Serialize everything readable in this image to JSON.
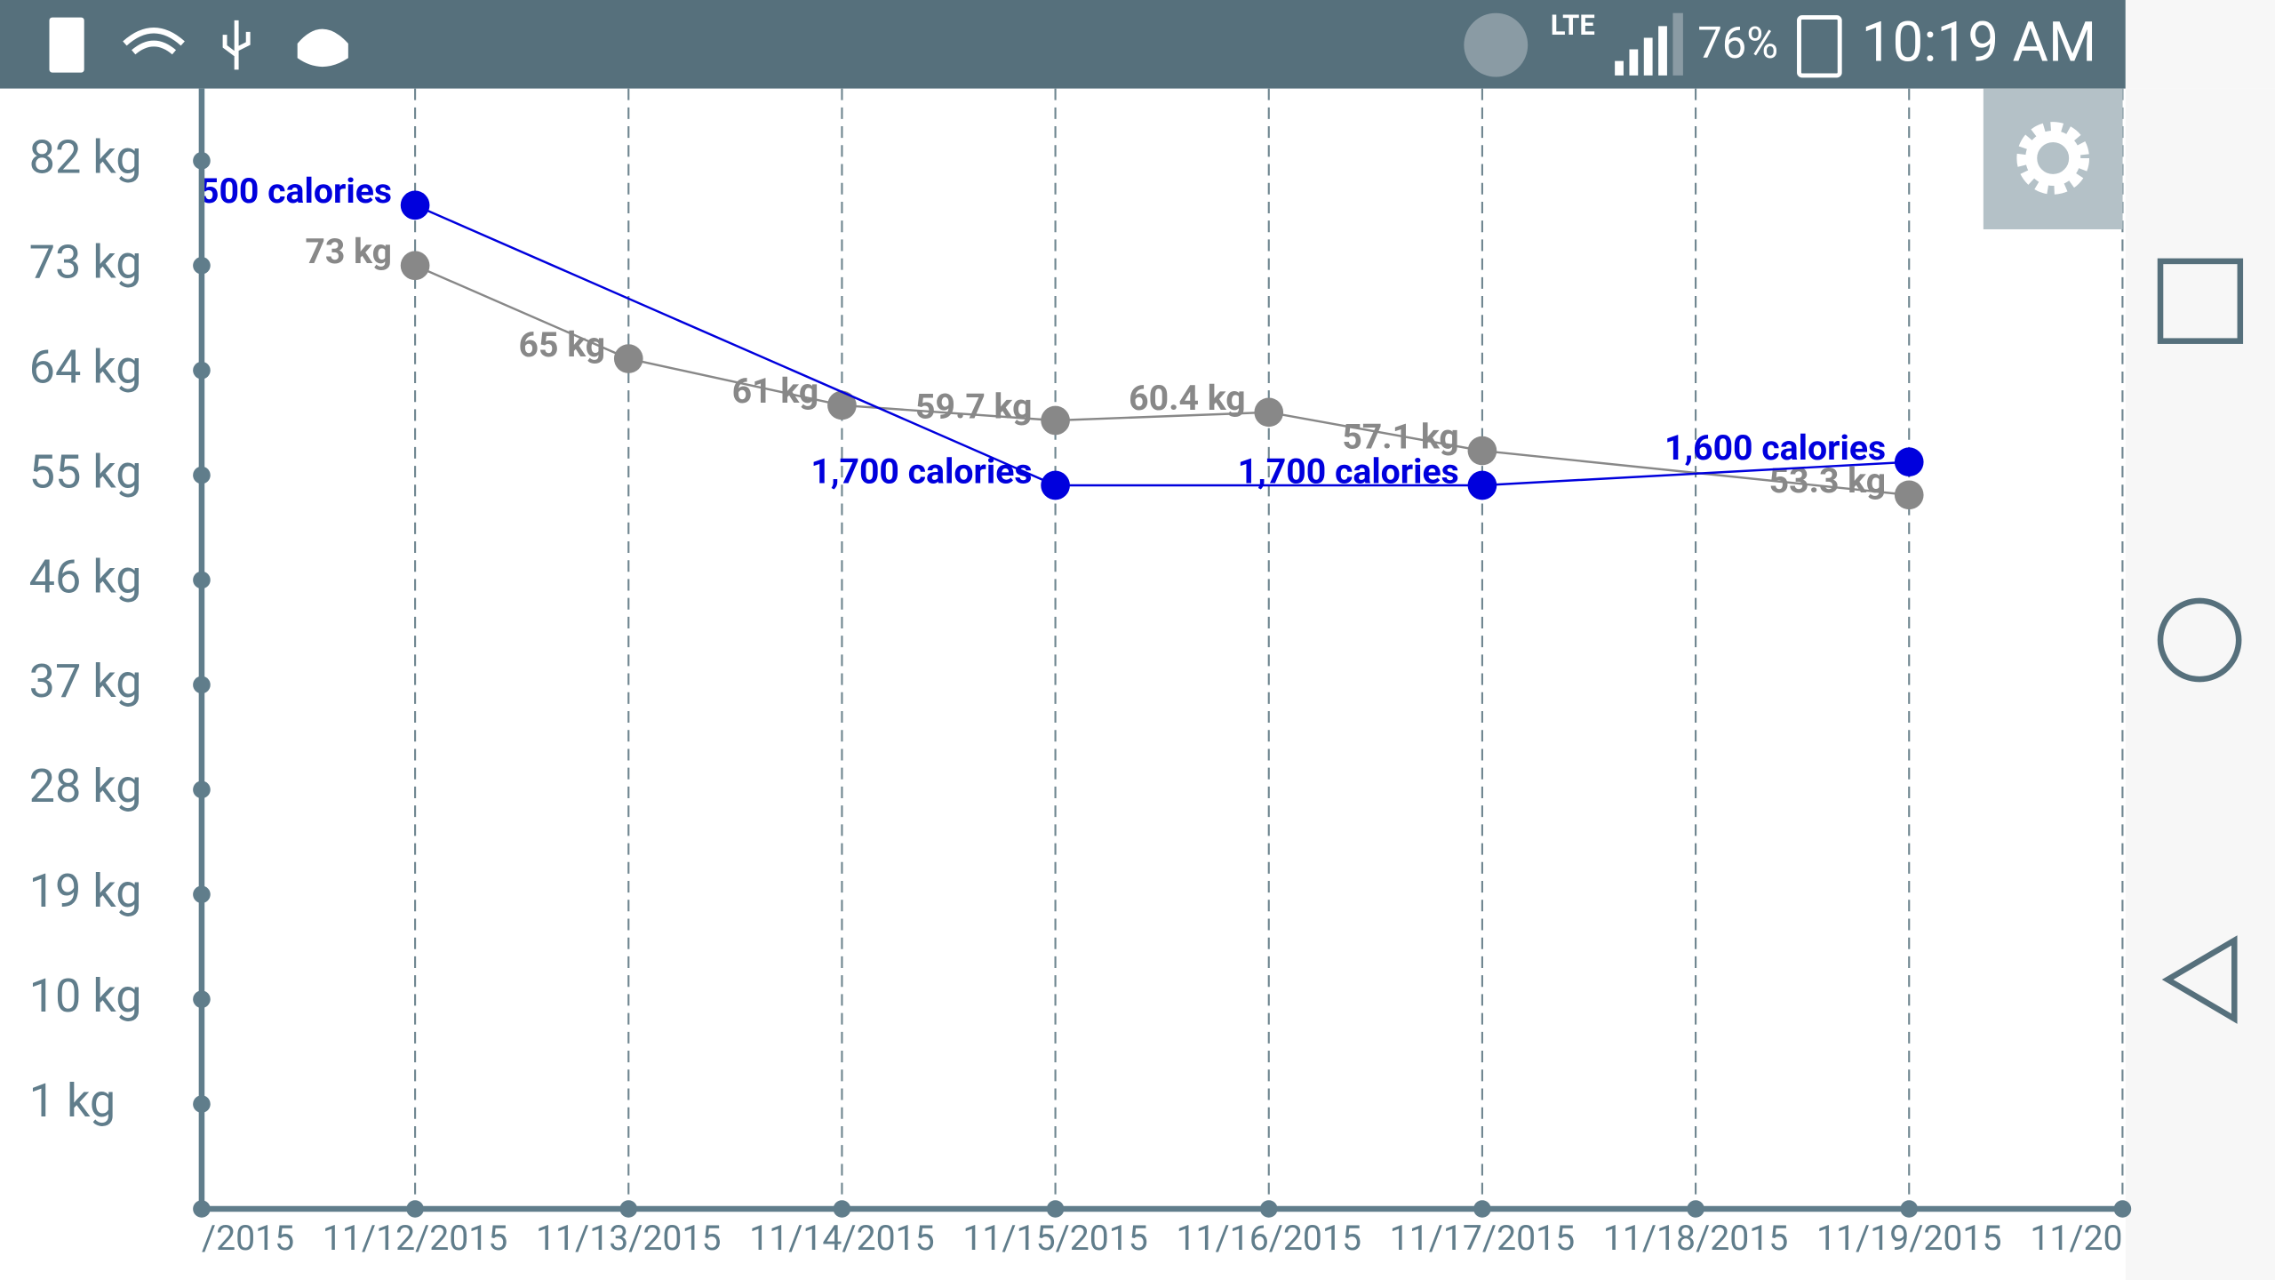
{
  "status_bar": {
    "network": "LTE",
    "battery": "76%",
    "time": "10:19 AM"
  },
  "chart_data": {
    "type": "line",
    "categories": [
      "/2015",
      "11/12/2015",
      "11/13/2015",
      "11/14/2015",
      "11/15/2015",
      "11/16/2015",
      "11/17/2015",
      "11/18/2015",
      "11/19/2015",
      "11/20"
    ],
    "ylim": [
      -8,
      88.2
    ],
    "yticks": [
      {
        "value": 82,
        "label": "82 kg"
      },
      {
        "value": 73,
        "label": "73 kg"
      },
      {
        "value": 64,
        "label": "64 kg"
      },
      {
        "value": 55,
        "label": "55 kg"
      },
      {
        "value": 46,
        "label": "46 kg"
      },
      {
        "value": 37,
        "label": "37 kg"
      },
      {
        "value": 28,
        "label": "28 kg"
      },
      {
        "value": 19,
        "label": "19 kg"
      },
      {
        "value": 10,
        "label": "10 kg"
      },
      {
        "value": 1,
        "label": "1 kg"
      }
    ],
    "y2lim": [
      4800,
      0
    ],
    "grid": true,
    "series": [
      {
        "color": "#888888",
        "x": [
          "11/12/2015",
          "11/13/2015",
          "11/14/2015",
          "11/15/2015",
          "11/16/2015",
          "11/17/2015",
          "11/19/2015"
        ],
        "values": [
          73,
          65,
          61,
          59.7,
          60.4,
          57.1,
          53.3
        ],
        "value_labels": [
          "73 kg",
          "65 kg",
          "61 kg",
          "59.7 kg",
          "60.4 kg",
          "57.1 kg",
          "53.3 kg"
        ]
      },
      {
        "color": "#0000dd",
        "axis": "y2",
        "x": [
          "11/12/2015",
          "11/15/2015",
          "11/17/2015",
          "11/19/2015"
        ],
        "values": [
          500,
          1700,
          1700,
          1600
        ],
        "value_labels": [
          "500 calories",
          "1,700 calories",
          "1,700 calories",
          "1,600 calories"
        ]
      }
    ]
  }
}
